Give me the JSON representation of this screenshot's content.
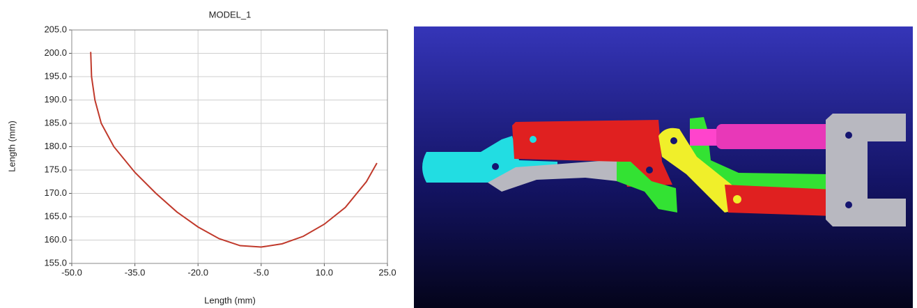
{
  "chart_data": {
    "type": "line",
    "title": "MODEL_1",
    "x_label": "Length (mm)",
    "y_label": "Length (mm)",
    "x": [
      -45.5,
      -45.3,
      -44.5,
      -43,
      -40,
      -35,
      -30,
      -25,
      -20,
      -15,
      -10,
      -5,
      0,
      5,
      10,
      15,
      20,
      22.5
    ],
    "values": [
      200.3,
      195,
      190,
      185,
      180,
      174.5,
      170,
      166,
      162.8,
      160.3,
      158.8,
      158.5,
      159.2,
      160.8,
      163.4,
      167,
      172.5,
      176.5
    ],
    "color": "#c0392b",
    "xlim": [
      -50,
      25
    ],
    "xticks": [
      {
        "value": -50,
        "label": "-50.0"
      },
      {
        "value": -35,
        "label": "-35.0"
      },
      {
        "value": -20,
        "label": "-20.0"
      },
      {
        "value": -5,
        "label": "-5.0"
      },
      {
        "value": 10,
        "label": "10.0"
      },
      {
        "value": 25,
        "label": "25.0"
      }
    ],
    "ylim": [
      155,
      205
    ],
    "yticks": [
      {
        "value": 155,
        "label": "155.0"
      },
      {
        "value": 160,
        "label": "160.0"
      },
      {
        "value": 165,
        "label": "165.0"
      },
      {
        "value": 170,
        "label": "170.0"
      },
      {
        "value": 175,
        "label": "175.0"
      },
      {
        "value": 180,
        "label": "180.0"
      },
      {
        "value": 185,
        "label": "185.0"
      },
      {
        "value": 190,
        "label": "190.0"
      },
      {
        "value": 195,
        "label": "195.0"
      },
      {
        "value": 200,
        "label": "200.0"
      },
      {
        "value": 205,
        "label": "205.0"
      }
    ],
    "grid": true
  }
}
